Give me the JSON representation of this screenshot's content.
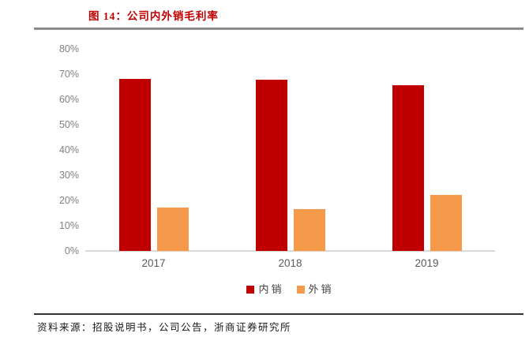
{
  "header": {
    "title": "图 14：公司内外销毛利率"
  },
  "chart_data": {
    "type": "bar",
    "title": "图 14：公司内外销毛利率",
    "categories": [
      "2017",
      "2018",
      "2019"
    ],
    "series": [
      {
        "name": "内销",
        "color": "#c00000",
        "values": [
          68.0,
          67.8,
          65.7
        ]
      },
      {
        "name": "外销",
        "color": "#f5994a",
        "values": [
          17.2,
          16.6,
          22.3
        ]
      }
    ],
    "xlabel": "",
    "ylabel": "",
    "ylim": [
      0,
      80
    ],
    "ytick_step": 10,
    "ytick_format": "percent",
    "grid": false,
    "legend_position": "bottom",
    "colors": {
      "axis_label": "#7f7f7f",
      "x_label": "#595959",
      "baseline": "#d9d9d9",
      "title": "#c00000"
    }
  },
  "footer": {
    "source": "资料来源：招股说明书，公司公告，浙商证券研究所"
  }
}
